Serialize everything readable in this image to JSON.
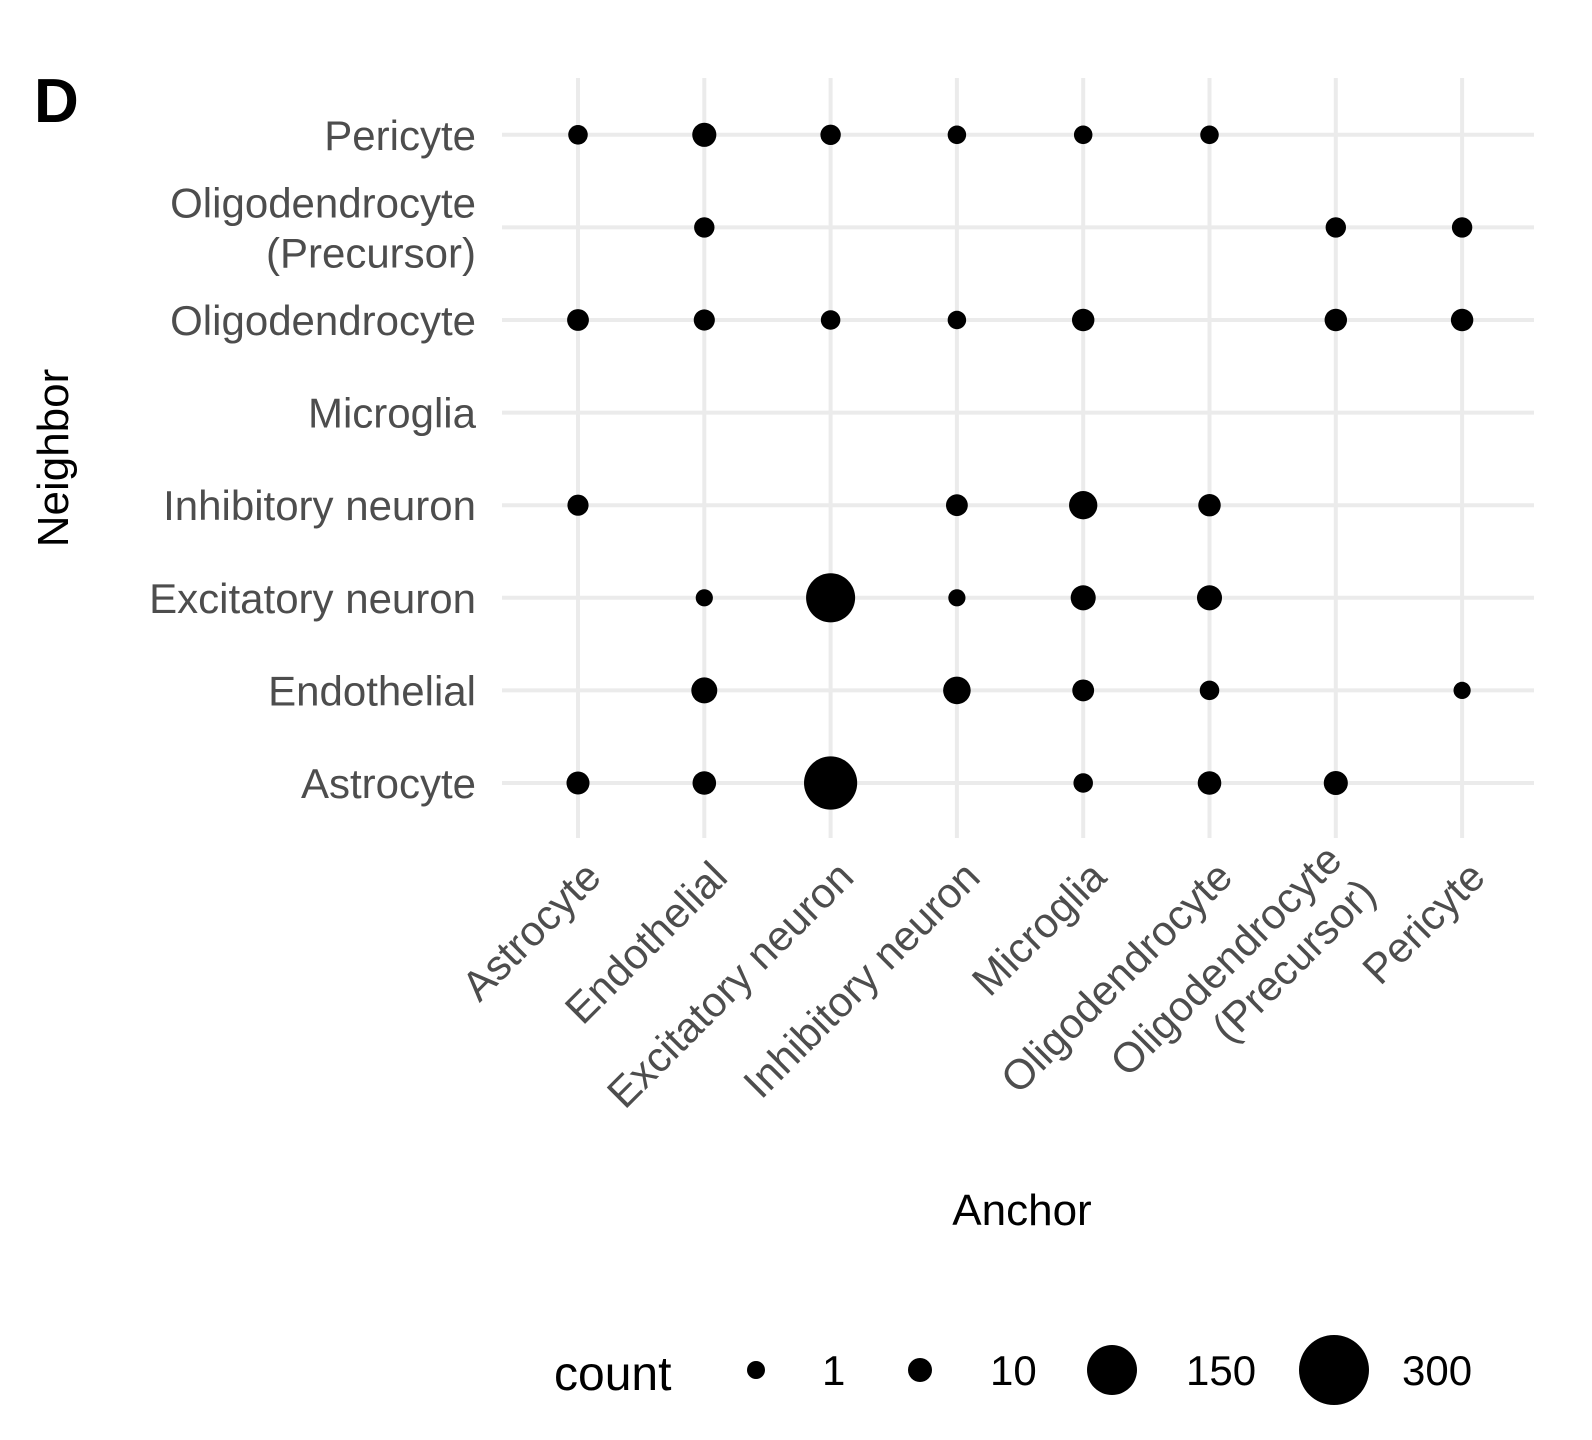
{
  "panel_label": "D",
  "chart_data": {
    "type": "scatter",
    "subtype": "dot-matrix (point size = count)",
    "title": "",
    "xlabel": "Anchor",
    "ylabel": "Neighbor",
    "x_categories": [
      [
        "Astrocyte"
      ],
      [
        "Endothelial"
      ],
      [
        "Excitatory neuron"
      ],
      [
        "Inhibitory neuron"
      ],
      [
        "Microglia"
      ],
      [
        "Oligodendrocyte"
      ],
      [
        "Oligodendrocyte",
        "(Precursor)"
      ],
      [
        "Pericyte"
      ]
    ],
    "y_categories": [
      [
        "Astrocyte"
      ],
      [
        "Endothelial"
      ],
      [
        "Excitatory neuron"
      ],
      [
        "Inhibitory neuron"
      ],
      [
        "Microglia"
      ],
      [
        "Oligodendrocyte"
      ],
      [
        "Oligodendrocyte",
        "(Precursor)"
      ],
      [
        "Pericyte"
      ]
    ],
    "points": [
      {
        "anchor": 0,
        "neighbor": 7,
        "count": 3
      },
      {
        "anchor": 1,
        "neighbor": 7,
        "count": 10
      },
      {
        "anchor": 2,
        "neighbor": 7,
        "count": 4
      },
      {
        "anchor": 3,
        "neighbor": 7,
        "count": 2
      },
      {
        "anchor": 4,
        "neighbor": 7,
        "count": 2
      },
      {
        "anchor": 5,
        "neighbor": 7,
        "count": 2
      },
      {
        "anchor": 1,
        "neighbor": 6,
        "count": 4
      },
      {
        "anchor": 6,
        "neighbor": 6,
        "count": 4
      },
      {
        "anchor": 7,
        "neighbor": 6,
        "count": 4
      },
      {
        "anchor": 0,
        "neighbor": 5,
        "count": 6
      },
      {
        "anchor": 1,
        "neighbor": 5,
        "count": 5
      },
      {
        "anchor": 2,
        "neighbor": 5,
        "count": 3
      },
      {
        "anchor": 3,
        "neighbor": 5,
        "count": 2
      },
      {
        "anchor": 4,
        "neighbor": 5,
        "count": 7
      },
      {
        "anchor": 6,
        "neighbor": 5,
        "count": 7
      },
      {
        "anchor": 7,
        "neighbor": 5,
        "count": 7
      },
      {
        "anchor": 0,
        "neighbor": 3,
        "count": 5
      },
      {
        "anchor": 3,
        "neighbor": 3,
        "count": 6
      },
      {
        "anchor": 4,
        "neighbor": 3,
        "count": 20
      },
      {
        "anchor": 5,
        "neighbor": 3,
        "count": 7
      },
      {
        "anchor": 1,
        "neighbor": 2,
        "count": 1
      },
      {
        "anchor": 2,
        "neighbor": 2,
        "count": 120
      },
      {
        "anchor": 3,
        "neighbor": 2,
        "count": 1
      },
      {
        "anchor": 4,
        "neighbor": 2,
        "count": 12
      },
      {
        "anchor": 5,
        "neighbor": 2,
        "count": 12
      },
      {
        "anchor": 1,
        "neighbor": 1,
        "count": 14
      },
      {
        "anchor": 3,
        "neighbor": 1,
        "count": 18
      },
      {
        "anchor": 4,
        "neighbor": 1,
        "count": 6
      },
      {
        "anchor": 5,
        "neighbor": 1,
        "count": 3
      },
      {
        "anchor": 7,
        "neighbor": 1,
        "count": 1
      },
      {
        "anchor": 0,
        "neighbor": 0,
        "count": 8
      },
      {
        "anchor": 1,
        "neighbor": 0,
        "count": 9
      },
      {
        "anchor": 2,
        "neighbor": 0,
        "count": 150
      },
      {
        "anchor": 4,
        "neighbor": 0,
        "count": 3
      },
      {
        "anchor": 5,
        "neighbor": 0,
        "count": 9
      },
      {
        "anchor": 6,
        "neighbor": 0,
        "count": 10
      }
    ],
    "legend": {
      "title": "count",
      "position": "bottom",
      "entries": [
        {
          "label": "1",
          "value": 1
        },
        {
          "label": "10",
          "value": 10
        },
        {
          "label": "150",
          "value": 150
        },
        {
          "label": "300",
          "value": 300
        }
      ]
    },
    "grid": true
  }
}
